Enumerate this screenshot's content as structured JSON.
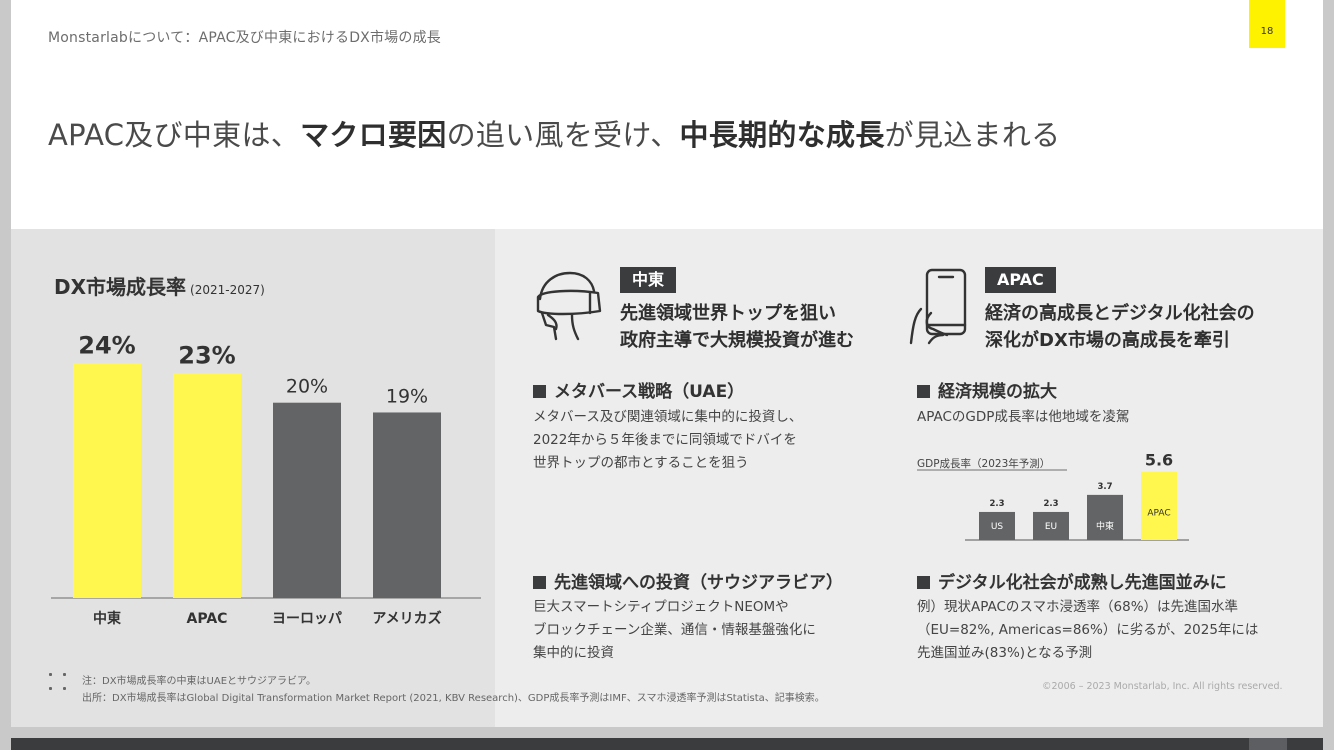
{
  "header": {
    "breadcrumb": "Monstarlabについて：APAC及び中東におけるDX市場の成長",
    "page_number": "18",
    "headline": {
      "p1": "APAC及び中東は、",
      "b1": "マクロ要因",
      "p2": "の追い風を受け、",
      "b2": "中長期的な成長",
      "p3": "が見込まれる"
    }
  },
  "left_chart": {
    "title": "DX市場成長率",
    "period": "(2021-2027)"
  },
  "middle_east": {
    "tag": "中東",
    "headline_line1": "先進領域世界トップを狙い",
    "headline_line2": "政府主導で大規模投資が進む",
    "section1": {
      "heading": "メタバース戦略（UAE）",
      "lines": [
        "メタバース及び関連領域に集中的に投資し、",
        "2022年から５年後までに同領域でドバイを",
        "世界トップの都市とすることを狙う"
      ]
    },
    "section2": {
      "heading": "先進領域への投資（サウジアラビア）",
      "lines": [
        "巨大スマートシティプロジェクトNEOMや",
        "ブロックチェーン企業、通信・情報基盤強化に",
        "集中的に投資"
      ]
    }
  },
  "apac": {
    "tag": "APAC",
    "headline_line1": "経済の高成長とデジタル化社会の",
    "headline_line2": "深化がDX市場の高成長を牽引",
    "section1": {
      "heading": "経済規模の拡大",
      "lines": [
        "APACのGDP成長率は他地域を凌駕"
      ],
      "gdp_chart_label": "GDP成長率（2023年予測）"
    },
    "section2": {
      "heading": "デジタル化社会が成熟し先進国並みに",
      "lines": [
        "例）現状APACのスマホ浸透率（68%）は先進国水準",
        "（EU=82%, Americas=86%）に劣るが、2025年には",
        "先進国並み(83%)となる予測"
      ]
    }
  },
  "footnotes": {
    "note": "注：DX市場成長率の中東はUAEとサウジアラビア。",
    "source": "出所：DX市場成長率はGlobal Digital Transformation Market Report (2021, KBV Research)、GDP成長率予測はIMF、スマホ浸透率予測はStatista、記事検索。"
  },
  "copyright": "©2006 – 2023 Monstarlab, Inc. All rights reserved.",
  "colors": {
    "highlight": "#fff74d",
    "dark_bar": "#636466",
    "accent": "#fff200"
  },
  "icons": {
    "middle_east": "vr-headset-icon",
    "apac": "smartphone-hand-icon",
    "footnote": "grid-dots-icon"
  },
  "chart_data": [
    {
      "type": "bar",
      "title": "DX市場成長率",
      "subtitle": "(2021-2027)",
      "categories": [
        "中東",
        "APAC",
        "ヨーロッパ",
        "アメリカズ"
      ],
      "values": [
        24,
        23,
        20,
        19
      ],
      "value_labels": [
        "24%",
        "23%",
        "20%",
        "19%"
      ],
      "highlight": [
        true,
        true,
        false,
        false
      ],
      "ylim": [
        0,
        34
      ],
      "grid": false
    },
    {
      "type": "bar",
      "title": "GDP成長率（2023年予測）",
      "categories": [
        "US",
        "EU",
        "中東",
        "APAC"
      ],
      "values": [
        2.3,
        2.3,
        3.7,
        5.6
      ],
      "value_labels": [
        "2.3",
        "2.3",
        "3.7",
        "5.6"
      ],
      "highlight": [
        false,
        false,
        false,
        true
      ],
      "ylim": [
        0,
        8.2
      ],
      "grid": false
    }
  ]
}
